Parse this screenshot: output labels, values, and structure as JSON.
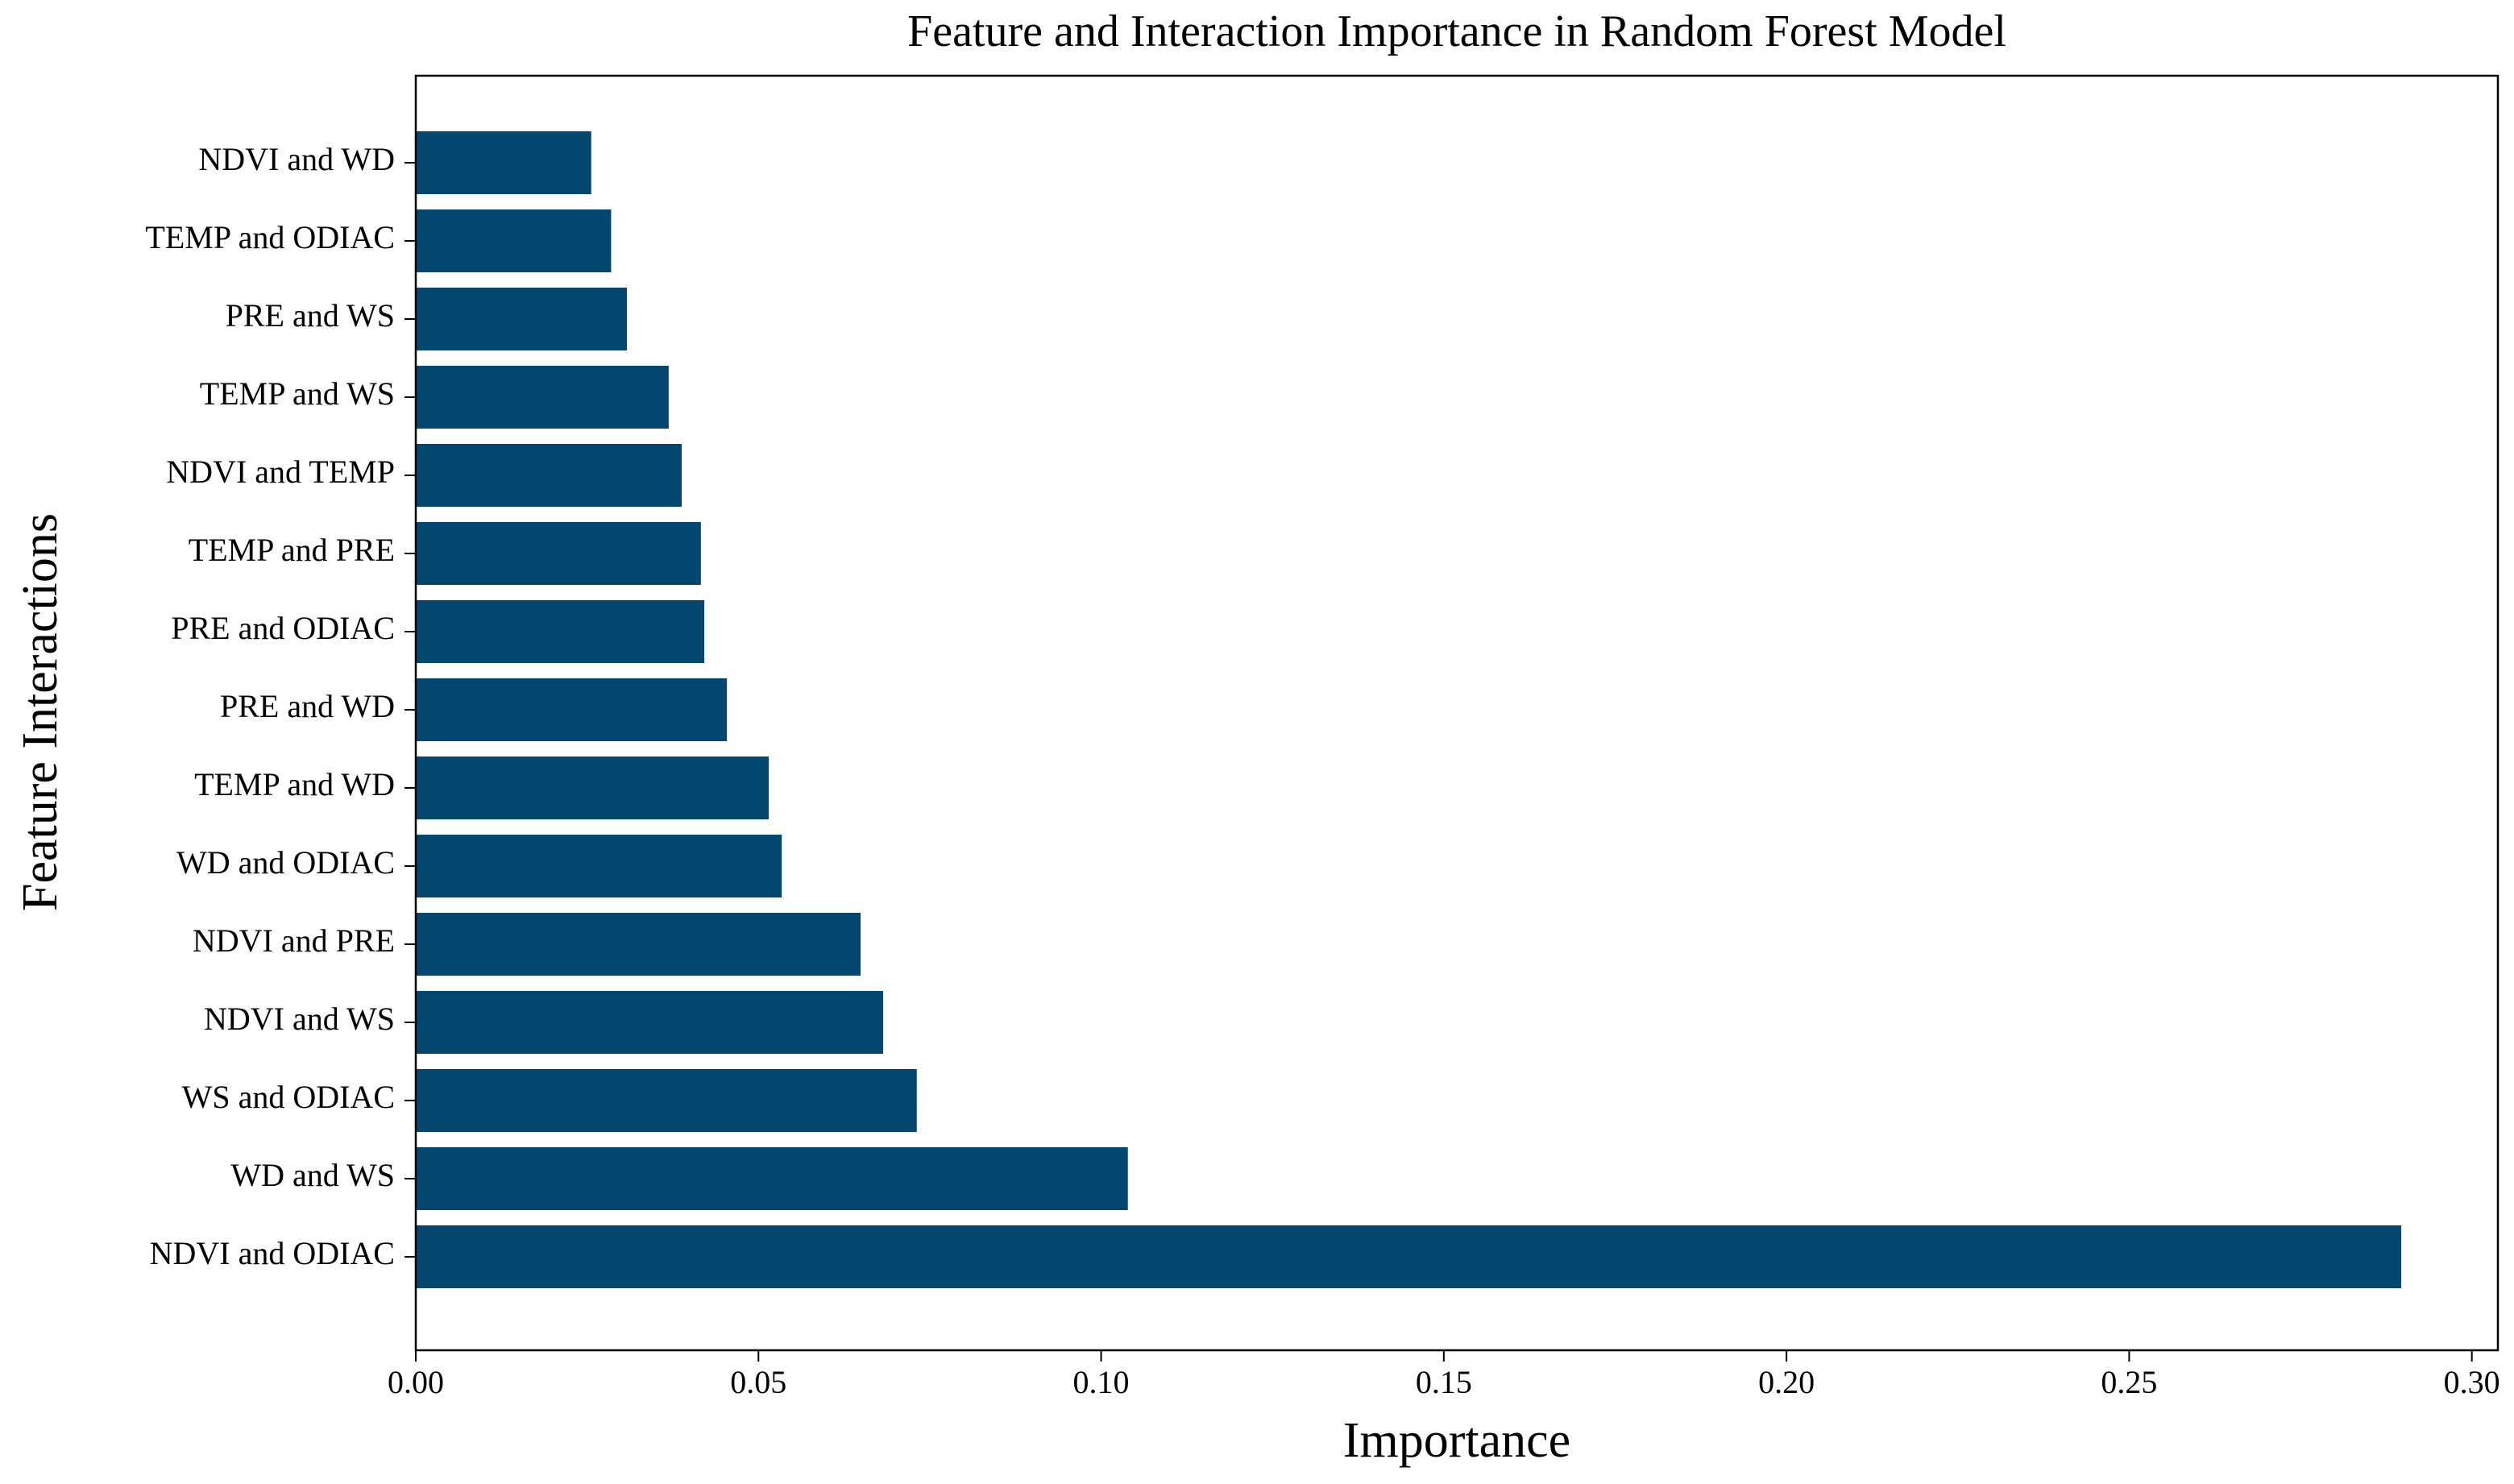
{
  "chart_data": {
    "type": "barh",
    "title": "Feature and Interaction Importance in Random Forest Model",
    "xlabel": "Importance",
    "ylabel": "Feature Interactions",
    "categories": [
      "NDVI and ODIAC",
      "WD and WS",
      "WS and ODIAC",
      "NDVI and WS",
      "NDVI and PRE",
      "WD and ODIAC",
      "TEMP and WD",
      "PRE and WD",
      "PRE and ODIAC",
      "TEMP and PRE",
      "NDVI and TEMP",
      "TEMP and WS",
      "PRE and WS",
      "TEMP and ODIAC",
      "NDVI and WD"
    ],
    "values": [
      0.2897,
      0.1039,
      0.0731,
      0.0682,
      0.0649,
      0.0534,
      0.0515,
      0.0454,
      0.0421,
      0.0416,
      0.0388,
      0.0369,
      0.0308,
      0.0285,
      0.0256
    ],
    "color": "#02476f",
    "xlim": [
      0,
      0.3038
    ],
    "xticks": [
      {
        "value": 0,
        "label": "0.00"
      },
      0.05,
      {
        "value": 0.1,
        "label": "0.10"
      },
      0.15,
      {
        "value": 0.2,
        "label": "0.20"
      },
      0.25,
      {
        "value": 0.3,
        "label": "0.30"
      }
    ],
    "grid": false
  }
}
